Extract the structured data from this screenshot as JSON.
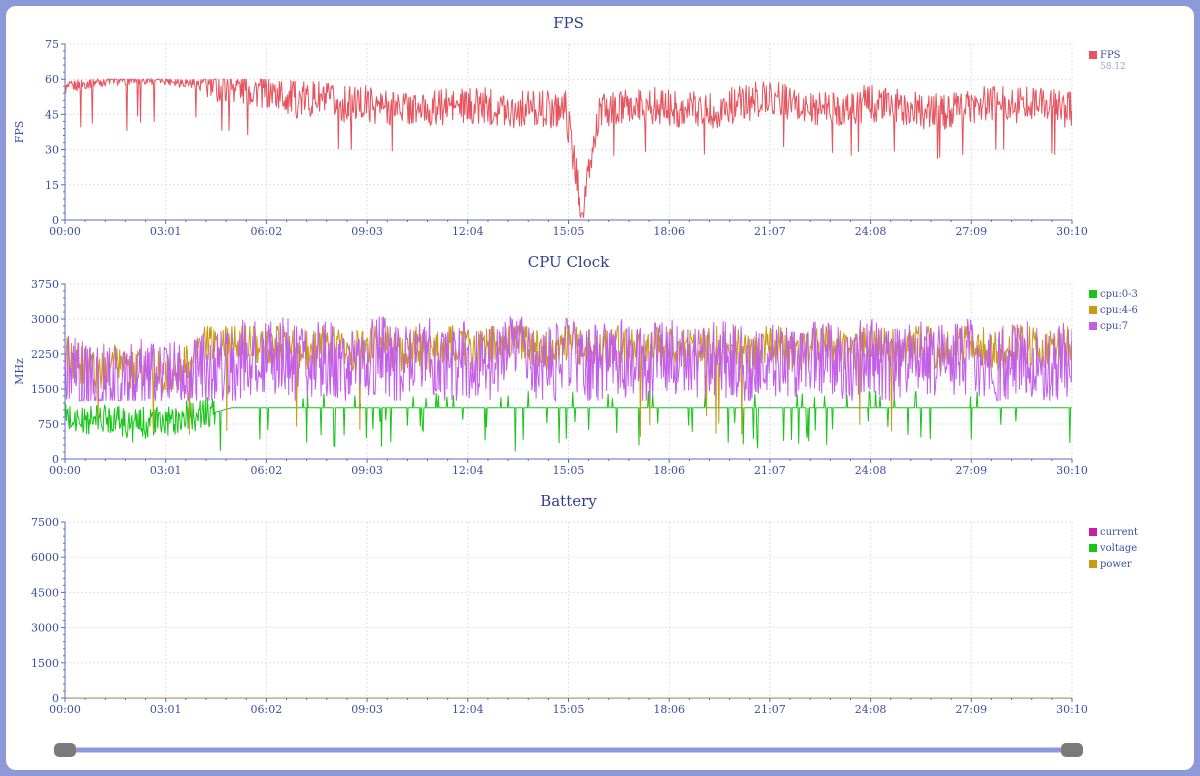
{
  "colors": {
    "axis": "#5a6db8",
    "grid": "#dde1ef",
    "slider_track": "#8e99d9",
    "slider_handle": "#7a7a7a"
  },
  "chart_data": [
    {
      "type": "line",
      "title": "FPS",
      "ylabel": "FPS",
      "xlabel": "",
      "ylim": [
        0,
        75
      ],
      "yticks": [
        0,
        15,
        30,
        45,
        60,
        75
      ],
      "xlim": [
        "00:00",
        "30:10"
      ],
      "xticks": [
        "00:00",
        "03:01",
        "06:02",
        "09:03",
        "12:04",
        "15:05",
        "18:06",
        "21:07",
        "24:08",
        "27:09",
        "30:10"
      ],
      "grid": true,
      "legend_position": "right",
      "series": [
        {
          "name": "FPS",
          "legend_value": "58.12",
          "color": "#e5545f",
          "x": [
            "00:00",
            "00:30",
            "01:00",
            "01:30",
            "02:00",
            "02:30",
            "03:00",
            "03:30",
            "04:00",
            "04:30",
            "05:00",
            "05:30",
            "06:00",
            "06:30",
            "07:00",
            "07:30",
            "08:00",
            "08:30",
            "09:00",
            "09:30",
            "10:00",
            "10:30",
            "11:00",
            "11:30",
            "12:00",
            "12:30",
            "13:00",
            "13:30",
            "14:00",
            "14:30",
            "15:00",
            "15:30",
            "16:00",
            "16:30",
            "17:00",
            "17:30",
            "18:00",
            "18:30",
            "19:00",
            "19:30",
            "20:00",
            "20:30",
            "21:00",
            "21:30",
            "22:00",
            "22:30",
            "23:00",
            "23:30",
            "24:00",
            "24:30",
            "25:00",
            "25:30",
            "26:00",
            "26:30",
            "27:00",
            "27:30",
            "28:00",
            "28:30",
            "29:00",
            "29:30",
            "30:00"
          ],
          "values": [
            56,
            58,
            59,
            60,
            60,
            60,
            60,
            59,
            58,
            57,
            58,
            56,
            55,
            53,
            51,
            52,
            50,
            49,
            50,
            48,
            49,
            47,
            47,
            49,
            48,
            49,
            48,
            47,
            48,
            47,
            48,
            3,
            46,
            47,
            48,
            49,
            48,
            47,
            48,
            46,
            49,
            50,
            53,
            51,
            48,
            47,
            48,
            47,
            50,
            49,
            48,
            47,
            46,
            46,
            48,
            49,
            50,
            49,
            51,
            48,
            47
          ]
        }
      ]
    },
    {
      "type": "line",
      "title": "CPU Clock",
      "ylabel": "MHz",
      "xlabel": "",
      "ylim": [
        0,
        3750
      ],
      "yticks": [
        0,
        750,
        1500,
        2250,
        3000,
        3750
      ],
      "xlim": [
        "00:00",
        "30:10"
      ],
      "xticks": [
        "00:00",
        "03:01",
        "06:02",
        "09:03",
        "12:04",
        "15:05",
        "18:06",
        "21:07",
        "24:08",
        "27:09",
        "30:10"
      ],
      "grid": true,
      "legend_position": "top-right",
      "series": [
        {
          "name": "cpu:0-3",
          "color": "#19c519",
          "x": [
            "00:00",
            "00:30",
            "01:00",
            "01:30",
            "02:00",
            "02:30",
            "03:00",
            "03:30",
            "04:00",
            "04:30",
            "05:00",
            "05:30",
            "06:00",
            "06:30",
            "07:00",
            "07:30",
            "08:00",
            "08:30",
            "09:00",
            "09:30",
            "10:00",
            "10:30",
            "11:00",
            "11:30",
            "12:00",
            "12:30",
            "13:00",
            "13:30",
            "14:00",
            "14:30",
            "15:00",
            "15:30",
            "16:00",
            "16:30",
            "17:00",
            "17:30",
            "18:00",
            "18:30",
            "19:00",
            "19:30",
            "20:00",
            "20:30",
            "21:00",
            "21:30",
            "22:00",
            "22:30",
            "23:00",
            "23:30",
            "24:00",
            "24:30",
            "25:00",
            "25:30",
            "26:00",
            "26:30",
            "27:00",
            "27:30",
            "28:00",
            "28:30",
            "29:00",
            "29:30",
            "30:00"
          ],
          "values": [
            900,
            800,
            850,
            900,
            700,
            800,
            750,
            900,
            950,
            1000,
            1100,
            1100,
            1100,
            1100,
            1100,
            1100,
            1100,
            1100,
            1100,
            1100,
            1100,
            1100,
            1100,
            1100,
            1100,
            1100,
            1100,
            1100,
            1100,
            1100,
            1100,
            1100,
            1100,
            1100,
            1100,
            1100,
            1100,
            1100,
            1100,
            1100,
            1100,
            1100,
            1100,
            1100,
            1100,
            1100,
            1100,
            1100,
            1100,
            1100,
            1100,
            1100,
            1100,
            1100,
            1100,
            1100,
            1100,
            1100,
            1100,
            1100,
            1100
          ]
        },
        {
          "name": "cpu:4-6",
          "color": "#c99a16",
          "x": [
            "00:00",
            "00:30",
            "01:00",
            "01:30",
            "02:00",
            "02:30",
            "03:00",
            "03:30",
            "04:00",
            "04:30",
            "05:00",
            "05:30",
            "06:00",
            "06:30",
            "07:00",
            "07:30",
            "08:00",
            "08:30",
            "09:00",
            "09:30",
            "10:00",
            "10:30",
            "11:00",
            "11:30",
            "12:00",
            "12:30",
            "13:00",
            "13:30",
            "14:00",
            "14:30",
            "15:00",
            "15:30",
            "16:00",
            "16:30",
            "17:00",
            "17:30",
            "18:00",
            "18:30",
            "19:00",
            "19:30",
            "20:00",
            "20:30",
            "21:00",
            "21:30",
            "22:00",
            "22:30",
            "23:00",
            "23:30",
            "24:00",
            "24:30",
            "25:00",
            "25:30",
            "26:00",
            "26:30",
            "27:00",
            "27:30",
            "28:00",
            "28:30",
            "29:00",
            "29:30",
            "30:00"
          ],
          "values": [
            2200,
            2000,
            1800,
            2100,
            1900,
            2000,
            1800,
            1900,
            2400,
            2500,
            2500,
            2600,
            2400,
            2500,
            2300,
            2400,
            2500,
            2300,
            2400,
            2500,
            2300,
            2400,
            2200,
            2500,
            2400,
            2300,
            2500,
            2600,
            2400,
            2300,
            2500,
            2400,
            2300,
            2500,
            2400,
            2300,
            2500,
            2400,
            2300,
            2500,
            2400,
            2300,
            2500,
            2400,
            2300,
            2500,
            2400,
            2300,
            2500,
            2400,
            2300,
            2500,
            2400,
            2300,
            2500,
            2400,
            2300,
            2500,
            2400,
            2300,
            2400
          ]
        },
        {
          "name": "cpu:7",
          "color": "#c35ee8",
          "x": [
            "00:00",
            "00:30",
            "01:00",
            "01:30",
            "02:00",
            "02:30",
            "03:00",
            "03:30",
            "04:00",
            "04:30",
            "05:00",
            "05:30",
            "06:00",
            "06:30",
            "07:00",
            "07:30",
            "08:00",
            "08:30",
            "09:00",
            "09:30",
            "10:00",
            "10:30",
            "11:00",
            "11:30",
            "12:00",
            "12:30",
            "13:00",
            "13:30",
            "14:00",
            "14:30",
            "15:00",
            "15:30",
            "16:00",
            "16:30",
            "17:00",
            "17:30",
            "18:00",
            "18:30",
            "19:00",
            "19:30",
            "20:00",
            "20:30",
            "21:00",
            "21:30",
            "22:00",
            "22:30",
            "23:00",
            "23:30",
            "24:00",
            "24:30",
            "25:00",
            "25:30",
            "26:00",
            "26:30",
            "27:00",
            "27:30",
            "28:00",
            "28:30",
            "29:00",
            "29:30",
            "30:00"
          ],
          "values": [
            1900,
            1700,
            1600,
            1800,
            1700,
            1900,
            1600,
            1800,
            2000,
            2100,
            2000,
            2200,
            2100,
            2300,
            2000,
            2100,
            2200,
            2000,
            2100,
            2300,
            2000,
            2100,
            2200,
            2000,
            2100,
            2200,
            2000,
            2300,
            2100,
            2000,
            2200,
            2100,
            2000,
            2200,
            2100,
            2000,
            2200,
            2100,
            2000,
            2200,
            2100,
            2000,
            2200,
            2100,
            2000,
            2200,
            2100,
            2000,
            2200,
            2100,
            2000,
            2200,
            2100,
            2000,
            2200,
            2100,
            2000,
            2200,
            2100,
            2000,
            2100
          ]
        }
      ]
    },
    {
      "type": "line",
      "title": "Battery",
      "ylabel": "",
      "xlabel": "",
      "ylim": [
        0,
        7500
      ],
      "yticks": [
        0,
        1500,
        3000,
        4500,
        6000,
        7500
      ],
      "xlim": [
        "00:00",
        "30:10"
      ],
      "xticks": [
        "00:00",
        "03:01",
        "06:02",
        "09:03",
        "12:04",
        "15:05",
        "18:06",
        "21:07",
        "24:08",
        "27:09",
        "30:10"
      ],
      "grid": true,
      "legend_position": "top-right",
      "series": [
        {
          "name": "current",
          "color": "#c71fa5",
          "x": [
            "00:00",
            "30:10"
          ],
          "values": [
            0,
            0
          ]
        },
        {
          "name": "voltage",
          "color": "#19c519",
          "x": [
            "00:00",
            "30:10"
          ],
          "values": [
            0,
            0
          ]
        },
        {
          "name": "power",
          "color": "#c99a16",
          "x": [
            "00:00",
            "30:10"
          ],
          "values": [
            0,
            0
          ]
        }
      ]
    }
  ],
  "range_slider": {
    "start_fraction": 0,
    "end_fraction": 1
  }
}
